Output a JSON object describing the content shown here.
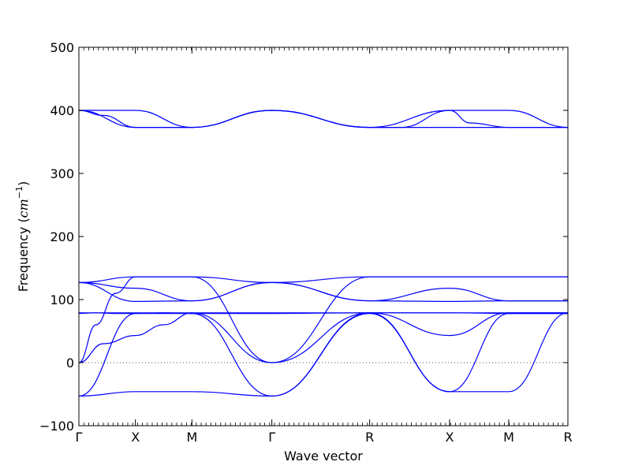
{
  "chart_data": {
    "type": "line",
    "title": "",
    "xlabel": "Wave vector",
    "ylabel": "Frequency (cm⁻¹)",
    "ylabel_prefix": "Frequency (",
    "ylabel_unit": "cm",
    "ylabel_exp": "−1",
    "ylabel_suffix": ")",
    "ylim": [
      -100,
      500
    ],
    "yticks": [
      -100,
      0,
      100,
      200,
      300,
      400,
      500
    ],
    "xlim": [
      0,
      1
    ],
    "xticks": [
      {
        "pos": 0.0,
        "label": "Γ"
      },
      {
        "pos": 0.1156,
        "label": "X"
      },
      {
        "pos": 0.2312,
        "label": "M"
      },
      {
        "pos": 0.3946,
        "label": "Γ"
      },
      {
        "pos": 0.5946,
        "label": "R"
      },
      {
        "pos": 0.758,
        "label": "X"
      },
      {
        "pos": 0.879,
        "label": "M"
      },
      {
        "pos": 1.0,
        "label": "R"
      }
    ],
    "zero_line": true,
    "line_color": "#0000ff",
    "series": [
      {
        "x": [
          0.0,
          0.1156,
          0.2312,
          0.3946,
          0.5946,
          0.758,
          0.879,
          1.0
        ],
        "y": [
          400,
          400,
          373,
          400,
          373,
          400,
          400,
          373
        ]
      },
      {
        "x": [
          0.0,
          0.05,
          0.1156,
          0.1734,
          0.2312,
          0.3946,
          0.5946,
          0.66,
          0.758,
          0.8,
          0.879,
          1.0
        ],
        "y": [
          400,
          392,
          373,
          373,
          373,
          400,
          373,
          373,
          400,
          380,
          373,
          373
        ]
      },
      {
        "x": [
          0.0,
          0.1156,
          0.2312,
          0.3946,
          0.5946,
          0.758,
          0.879,
          1.0
        ],
        "y": [
          400,
          373,
          373,
          400,
          373,
          373,
          373,
          373
        ]
      },
      {
        "x": [
          0.0,
          0.1156,
          0.2312,
          0.3946,
          0.5946,
          0.758,
          0.879,
          1.0
        ],
        "y": [
          127,
          136,
          136,
          127,
          136,
          136,
          136,
          136
        ]
      },
      {
        "x": [
          0.0,
          0.1156,
          0.2312,
          0.3946,
          0.5946,
          0.758,
          0.879,
          1.0
        ],
        "y": [
          127,
          118,
          98,
          127,
          98,
          118,
          98,
          98
        ]
      },
      {
        "x": [
          0.0,
          0.1156,
          0.2312,
          0.3946,
          0.5946,
          0.758,
          0.879,
          1.0
        ],
        "y": [
          127,
          97,
          98,
          127,
          98,
          97,
          98,
          98
        ]
      },
      {
        "x": [
          0.0,
          0.035,
          0.07,
          0.1156,
          0.1734,
          0.2312,
          0.3946,
          0.5946,
          0.758,
          0.879,
          1.0
        ],
        "y": [
          78,
          79,
          78,
          78,
          79,
          78,
          78,
          79,
          79,
          78,
          78
        ]
      },
      {
        "x": [
          0.0,
          0.1156,
          0.2312,
          0.3946,
          0.5946,
          0.758,
          0.879,
          1.0
        ],
        "y": [
          79,
          79,
          79,
          79,
          79,
          79,
          79,
          79
        ]
      },
      {
        "x": [
          0.0,
          0.035,
          0.0752,
          0.1156,
          0.15,
          0.1734,
          0.2312,
          0.3946,
          0.5946,
          0.758,
          0.879,
          1.0
        ],
        "y": [
          0,
          60,
          110,
          136,
          136,
          136,
          136,
          0,
          136,
          136,
          136,
          136
        ]
      },
      {
        "x": [
          0.0,
          0.05,
          0.1156,
          0.1734,
          0.2312,
          0.3946,
          0.5946,
          0.758,
          0.879,
          1.0
        ],
        "y": [
          0,
          30,
          43,
          60,
          79,
          0,
          79,
          43,
          79,
          79
        ]
      },
      {
        "x": [
          0.0,
          0.1156,
          0.2312,
          0.3946,
          0.5946,
          0.758,
          0.879,
          1.0
        ],
        "y": [
          -53,
          -46,
          -46,
          -53,
          79,
          -46,
          -46,
          79
        ]
      },
      {
        "x": [
          0.0,
          0.1156,
          0.2312,
          0.3946,
          0.5946,
          0.758,
          0.879,
          1.0
        ],
        "y": [
          -53,
          78,
          78,
          -53,
          78,
          -46,
          78,
          78
        ]
      }
    ]
  }
}
